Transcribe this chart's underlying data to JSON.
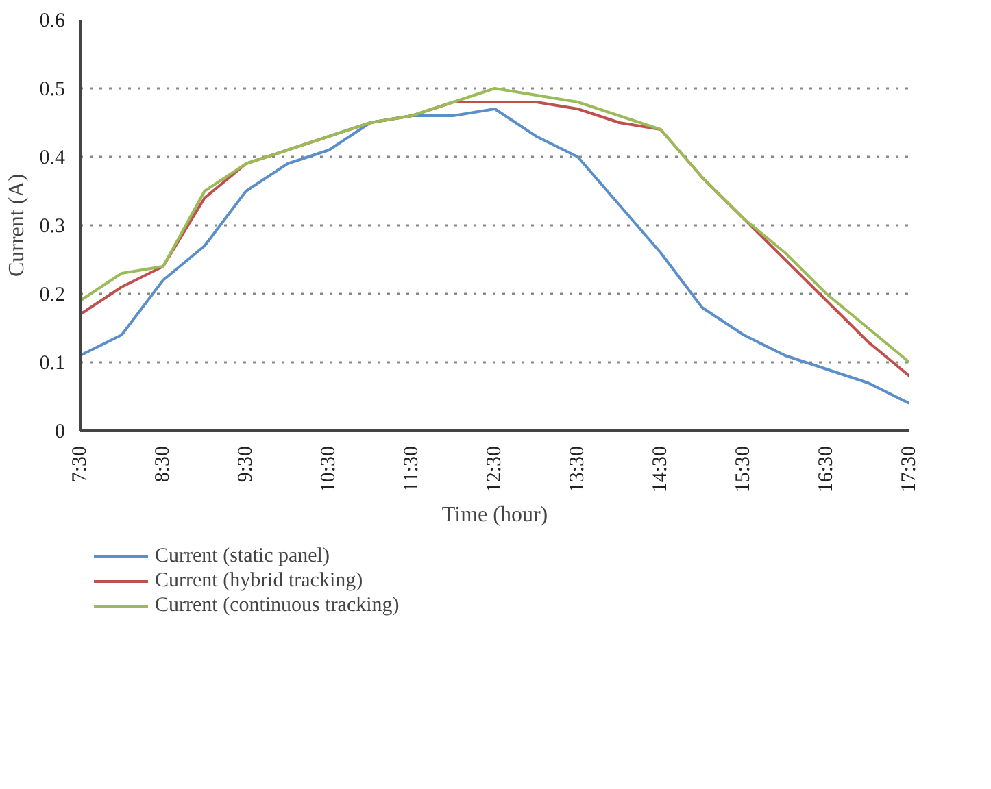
{
  "chart_data": {
    "type": "line",
    "xlabel": "Time (hour)",
    "ylabel": "Current (A)",
    "x": [
      7.5,
      8,
      8.5,
      9,
      9.5,
      10,
      10.5,
      11,
      11.5,
      12,
      12.5,
      13,
      13.5,
      14,
      14.5,
      15,
      15.5,
      16,
      16.5,
      17,
      17.5
    ],
    "xlim": [
      7.5,
      17.5
    ],
    "xticks": [
      {
        "value": 7.5,
        "label": "7:30"
      },
      {
        "value": 8.5,
        "label": "8:30"
      },
      {
        "value": 9.5,
        "label": "9:30"
      },
      {
        "value": 10.5,
        "label": "10:30"
      },
      {
        "value": 11.5,
        "label": "11:30"
      },
      {
        "value": 12.5,
        "label": "12:30"
      },
      {
        "value": 13.5,
        "label": "13:30"
      },
      {
        "value": 14.5,
        "label": "14:30"
      },
      {
        "value": 15.5,
        "label": "15:30"
      },
      {
        "value": 16.5,
        "label": "16:30"
      },
      {
        "value": 17.5,
        "label": "17:30"
      }
    ],
    "ylim": [
      0,
      0.6
    ],
    "yticks": [
      0,
      0.1,
      0.2,
      0.3,
      0.4,
      0.5,
      0.6
    ],
    "grid": "y",
    "legend": "bottom",
    "marker": "none",
    "line_style": "solid",
    "series": [
      {
        "name": "Current (static panel)",
        "color": "#5b8fc9",
        "values": [
          0.11,
          0.14,
          0.22,
          0.27,
          0.35,
          0.39,
          0.41,
          0.45,
          0.46,
          0.46,
          0.47,
          0.43,
          0.4,
          0.33,
          0.26,
          0.18,
          0.14,
          0.11,
          0.09,
          0.07,
          0.04
        ]
      },
      {
        "name": "Current (hybrid tracking)",
        "color": "#c0504d",
        "values": [
          0.17,
          0.21,
          0.24,
          0.34,
          0.39,
          0.41,
          0.43,
          0.45,
          0.46,
          0.48,
          0.48,
          0.48,
          0.47,
          0.45,
          0.44,
          0.37,
          0.31,
          0.25,
          0.19,
          0.13,
          0.08
        ]
      },
      {
        "name": "Current (continuous tracking)",
        "color": "#9bbb59",
        "values": [
          0.19,
          0.23,
          0.24,
          0.35,
          0.39,
          0.41,
          0.43,
          0.45,
          0.46,
          0.48,
          0.5,
          0.49,
          0.48,
          0.46,
          0.44,
          0.37,
          0.31,
          0.26,
          0.2,
          0.15,
          0.1
        ]
      }
    ]
  }
}
